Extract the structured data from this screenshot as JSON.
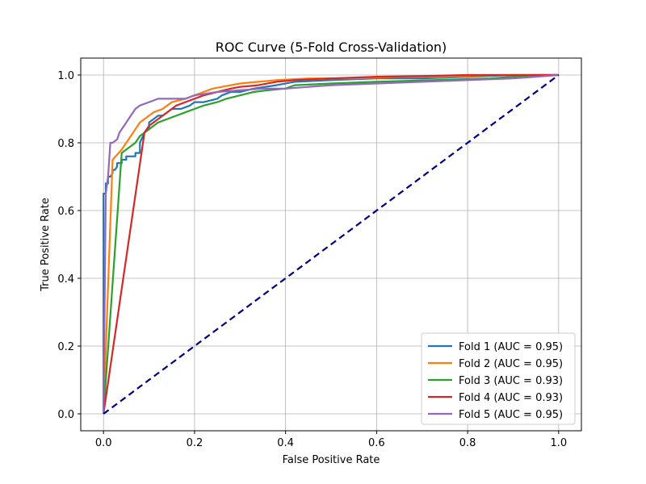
{
  "chart_data": {
    "type": "line",
    "title": "ROC Curve (5-Fold Cross-Validation)",
    "xlabel": "False Positive Rate",
    "ylabel": "True Positive Rate",
    "xlim": [
      -0.05,
      1.05
    ],
    "ylim": [
      -0.05,
      1.05
    ],
    "x_ticks": [
      "0.0",
      "0.2",
      "0.4",
      "0.6",
      "0.8",
      "1.0"
    ],
    "y_ticks": [
      "0.0",
      "0.2",
      "0.4",
      "0.6",
      "0.8",
      "1.0"
    ],
    "grid": true,
    "legend_position": "lower-right",
    "series": [
      {
        "name": "Fold 1 (AUC = 0.95)",
        "color": "#1f77b4",
        "x": [
          0,
          0.0,
          0.005,
          0.005,
          0.01,
          0.01,
          0.015,
          0.02,
          0.02,
          0.025,
          0.03,
          0.03,
          0.035,
          0.04,
          0.04,
          0.05,
          0.05,
          0.06,
          0.07,
          0.07,
          0.08,
          0.08,
          0.09,
          0.1,
          0.1,
          0.11,
          0.12,
          0.13,
          0.14,
          0.15,
          0.17,
          0.19,
          0.2,
          0.22,
          0.25,
          0.26,
          0.28,
          0.3,
          0.33,
          0.38,
          0.42,
          0.5,
          0.6,
          0.7,
          0.8,
          0.9,
          1.0
        ],
        "y": [
          0,
          0.65,
          0.65,
          0.68,
          0.68,
          0.7,
          0.7,
          0.71,
          0.72,
          0.72,
          0.73,
          0.74,
          0.74,
          0.74,
          0.75,
          0.75,
          0.76,
          0.76,
          0.76,
          0.77,
          0.77,
          0.8,
          0.83,
          0.84,
          0.86,
          0.87,
          0.88,
          0.88,
          0.89,
          0.9,
          0.9,
          0.91,
          0.92,
          0.92,
          0.93,
          0.94,
          0.95,
          0.95,
          0.96,
          0.97,
          0.98,
          0.985,
          0.99,
          0.99,
          0.995,
          1.0,
          1.0
        ]
      },
      {
        "name": "Fold 2 (AUC = 0.95)",
        "color": "#ff7f0e",
        "x": [
          0,
          0.02,
          0.04,
          0.05,
          0.06,
          0.07,
          0.08,
          0.09,
          0.1,
          0.11,
          0.13,
          0.15,
          0.18,
          0.2,
          0.22,
          0.24,
          0.26,
          0.3,
          0.34,
          0.38,
          0.45,
          0.55,
          0.65,
          0.75,
          0.85,
          0.95,
          1.0
        ],
        "y": [
          0,
          0.75,
          0.78,
          0.8,
          0.82,
          0.84,
          0.86,
          0.87,
          0.88,
          0.89,
          0.9,
          0.92,
          0.93,
          0.94,
          0.95,
          0.96,
          0.965,
          0.975,
          0.98,
          0.985,
          0.99,
          0.99,
          0.995,
          0.995,
          1.0,
          1.0,
          1.0
        ]
      },
      {
        "name": "Fold 3 (AUC = 0.93)",
        "color": "#2ca02c",
        "x": [
          0,
          0.04,
          0.05,
          0.06,
          0.07,
          0.08,
          0.09,
          0.1,
          0.12,
          0.14,
          0.16,
          0.18,
          0.2,
          0.22,
          0.25,
          0.27,
          0.3,
          0.33,
          0.36,
          0.4,
          0.42,
          0.5,
          0.6,
          0.72,
          0.85,
          0.95,
          1.0
        ],
        "y": [
          0,
          0.77,
          0.78,
          0.79,
          0.8,
          0.82,
          0.83,
          0.84,
          0.86,
          0.87,
          0.88,
          0.89,
          0.9,
          0.91,
          0.92,
          0.93,
          0.94,
          0.95,
          0.955,
          0.96,
          0.97,
          0.975,
          0.98,
          0.985,
          0.99,
          1.0,
          1.0
        ]
      },
      {
        "name": "Fold 4 (AUC = 0.93)",
        "color": "#d62728",
        "x": [
          0,
          0.09,
          0.1,
          0.11,
          0.12,
          0.13,
          0.14,
          0.15,
          0.16,
          0.18,
          0.2,
          0.22,
          0.25,
          0.28,
          0.3,
          0.34,
          0.38,
          0.42,
          0.5,
          0.6,
          0.7,
          0.8,
          0.9,
          1.0
        ],
        "y": [
          0,
          0.83,
          0.85,
          0.86,
          0.87,
          0.88,
          0.89,
          0.9,
          0.91,
          0.92,
          0.93,
          0.94,
          0.95,
          0.96,
          0.965,
          0.97,
          0.98,
          0.985,
          0.99,
          0.995,
          0.997,
          1.0,
          1.0,
          1.0
        ]
      },
      {
        "name": "Fold 5 (AUC = 0.95)",
        "color": "#9467bd",
        "x": [
          0,
          0.005,
          0.01,
          0.015,
          0.02,
          0.03,
          0.035,
          0.04,
          0.045,
          0.05,
          0.06,
          0.07,
          0.08,
          0.1,
          0.12,
          0.15,
          0.18,
          0.2,
          0.25,
          0.3,
          0.35,
          0.4,
          0.5,
          0.6,
          0.7,
          0.8,
          0.9,
          0.95,
          1.0
        ],
        "y": [
          0,
          0.65,
          0.7,
          0.8,
          0.8,
          0.81,
          0.83,
          0.84,
          0.85,
          0.86,
          0.88,
          0.9,
          0.91,
          0.92,
          0.93,
          0.93,
          0.93,
          0.94,
          0.95,
          0.955,
          0.96,
          0.96,
          0.97,
          0.975,
          0.98,
          0.985,
          0.99,
          0.995,
          1.0
        ]
      }
    ],
    "reference_line": {
      "x": [
        0,
        1
      ],
      "y": [
        0,
        1
      ],
      "color": "#000080",
      "style": "dashed"
    }
  }
}
